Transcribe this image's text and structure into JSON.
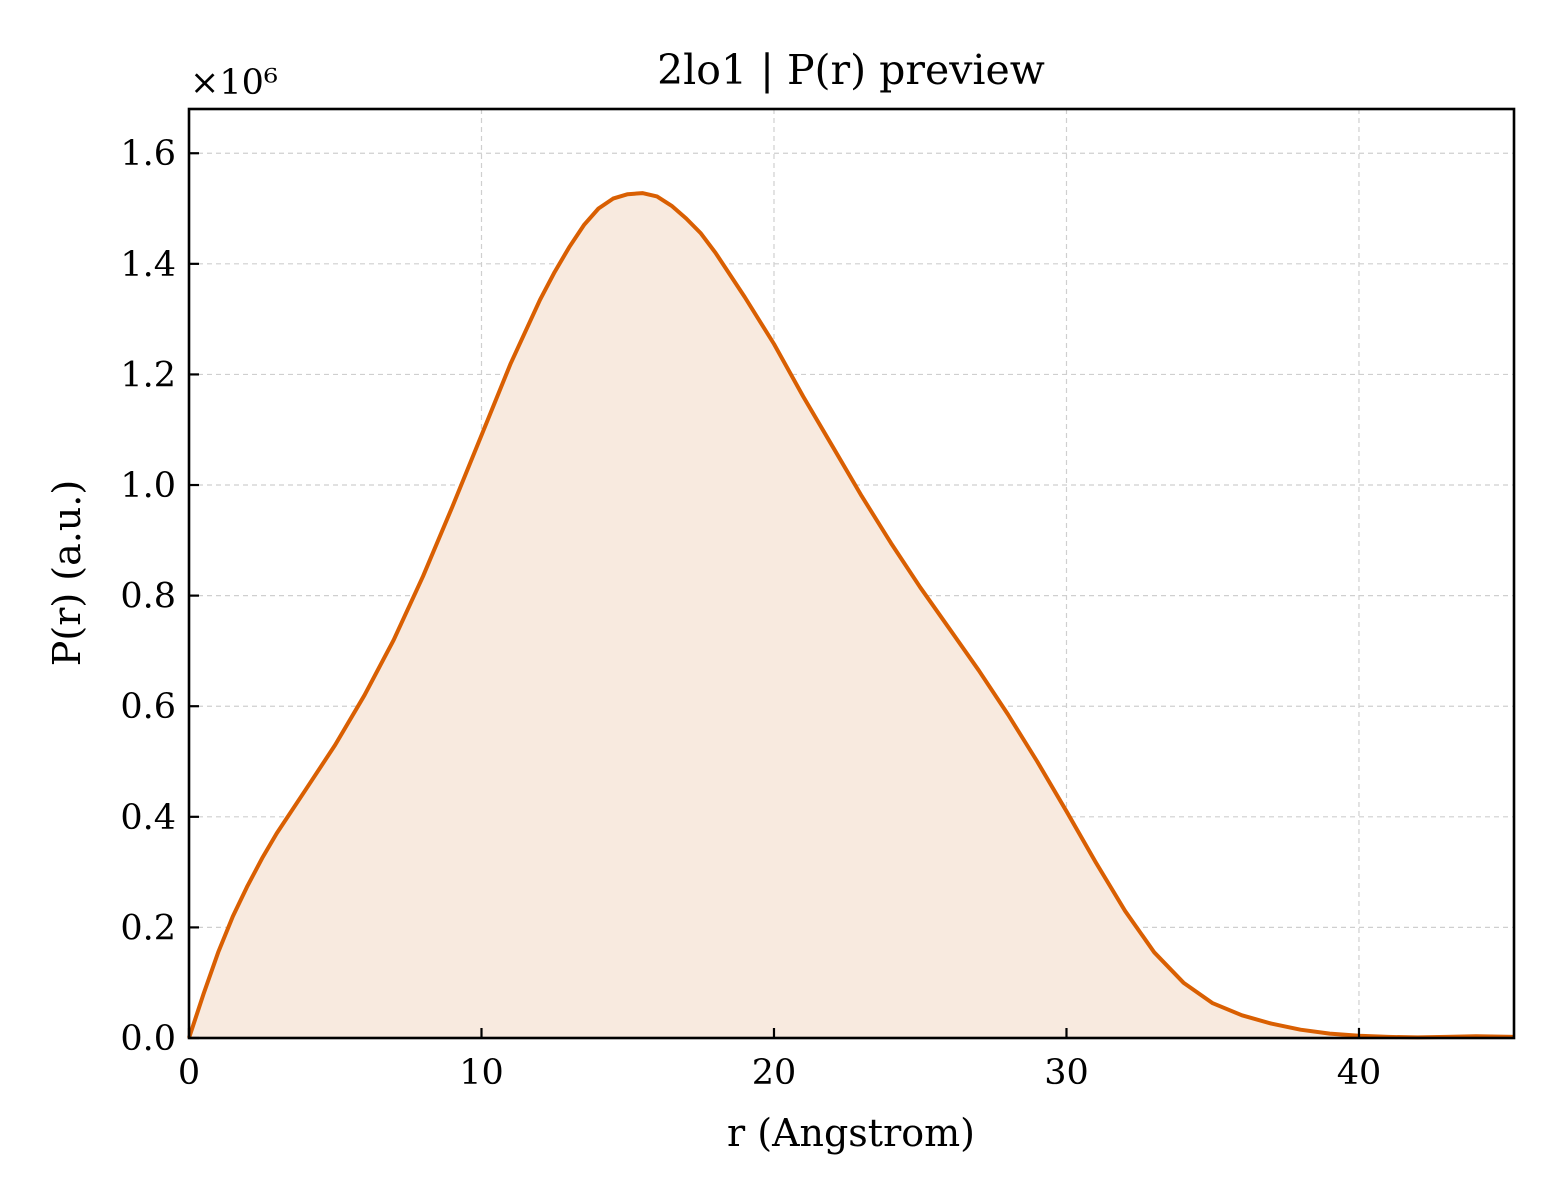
{
  "chart_data": {
    "type": "area",
    "title": "2lo1 | P(r) preview",
    "xlabel": "r (Angstrom)",
    "ylabel": "P(r) (a.u.)",
    "y_offset_label": "×10⁶",
    "xlim": [
      0,
      45.3
    ],
    "ylim": [
      0,
      1.68
    ],
    "y_scale_factor": 1000000,
    "x_ticks": [
      0,
      10,
      20,
      30,
      40
    ],
    "x_tick_labels": [
      "0",
      "10",
      "20",
      "30",
      "40"
    ],
    "y_ticks": [
      0.0,
      0.2,
      0.4,
      0.6,
      0.8,
      1.0,
      1.2,
      1.4,
      1.6
    ],
    "y_tick_labels": [
      "0.0",
      "0.2",
      "0.4",
      "0.6",
      "0.8",
      "1.0",
      "1.2",
      "1.4",
      "1.6"
    ],
    "grid": true,
    "line_color": "#d95f02",
    "fill_color": "#f8eadf",
    "series": [
      {
        "x": [
          0,
          0.5,
          1,
          1.5,
          2,
          2.5,
          3,
          4,
          5,
          6,
          7,
          8,
          9,
          10,
          11,
          12,
          12.5,
          13,
          13.5,
          14,
          14.5,
          15,
          15.5,
          16,
          16.5,
          17,
          17.5,
          18,
          19,
          20,
          21,
          22,
          23,
          24,
          25,
          26,
          27,
          28,
          29,
          30,
          31,
          32,
          33,
          34,
          35,
          36,
          37,
          38,
          39,
          40,
          41,
          42,
          43,
          44,
          45.3
        ],
        "y": [
          0.0,
          0.08,
          0.155,
          0.22,
          0.275,
          0.325,
          0.37,
          0.45,
          0.53,
          0.62,
          0.72,
          0.835,
          0.96,
          1.09,
          1.22,
          1.335,
          1.385,
          1.43,
          1.47,
          1.5,
          1.518,
          1.526,
          1.528,
          1.522,
          1.505,
          1.482,
          1.455,
          1.42,
          1.34,
          1.255,
          1.16,
          1.07,
          0.98,
          0.895,
          0.815,
          0.74,
          0.665,
          0.585,
          0.5,
          0.41,
          0.318,
          0.23,
          0.155,
          0.1,
          0.063,
          0.041,
          0.026,
          0.015,
          0.008,
          0.004,
          0.002,
          0.001,
          0.002,
          0.003,
          0.002
        ]
      }
    ]
  }
}
